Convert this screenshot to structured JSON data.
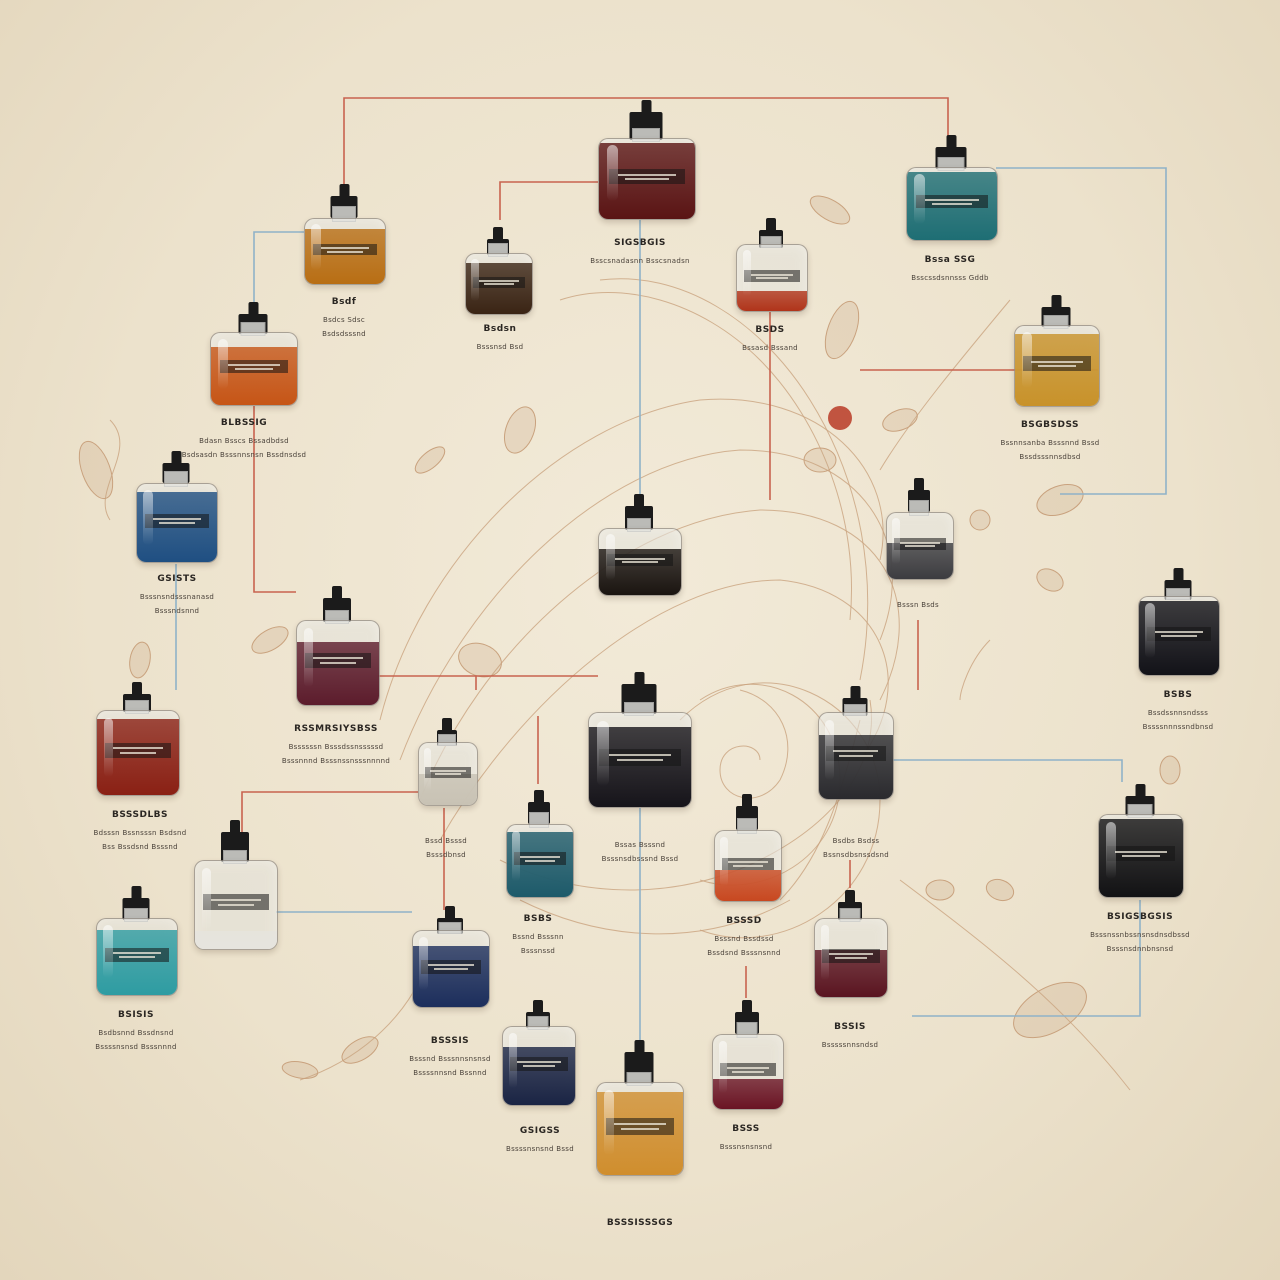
{
  "colors": {
    "background": "#eee5d1",
    "wire_red": "#c8634f",
    "wire_blue": "#8fb2c8",
    "swirl": "#c9a27e"
  },
  "bottles": [
    {
      "name": "bottle-top-center",
      "liquid": "#5a1414",
      "fill": 0.95,
      "caption": {
        "t": "SIGSBGIS",
        "s": "Bsscsnadasnn Bsscsnadsn"
      }
    },
    {
      "name": "bottle-top-right-teal",
      "liquid": "#1e6e74",
      "fill": 0.95,
      "caption": {
        "t": "Bssa SSG",
        "s": "Bsscssdsnnsss Gddb"
      }
    },
    {
      "name": "bottle-amber-left",
      "liquid": "#b86e14",
      "fill": 0.85,
      "caption": {
        "t": "Bsdf",
        "s": "Bsdcs Sdsc",
        "s2": "Bsdsdsssnd"
      }
    },
    {
      "name": "bottle-small-dark",
      "liquid": "#3a2414",
      "fill": 0.85,
      "caption": {
        "t": "Bsdsn",
        "s": "Bsssnsd Bsd"
      }
    },
    {
      "name": "bottle-red-center",
      "liquid": "#b0341a",
      "fill": 0.3,
      "caption": {
        "t": "BSDS",
        "s": "Bssasd Bssand"
      }
    },
    {
      "name": "bottle-orange-left",
      "liquid": "#c65516",
      "fill": 0.8,
      "caption": {
        "t": "BLBSSIG",
        "s": "Bdasn Bsscs Bssadbdsd",
        "s2": "Bsdsasdn Bsssnnsnsn Bssdnsdsd"
      }
    },
    {
      "name": "bottle-amber-right",
      "liquid": "#c8922a",
      "fill": 0.9,
      "caption": {
        "t": "BSGBSDSS",
        "s": "Bssnnsanba Bsssnnd Bssd",
        "s2": "Bssdsssnnsdbsd"
      }
    },
    {
      "name": "bottle-blue-left",
      "liquid": "#1f4f82",
      "fill": 0.9,
      "caption": {
        "t": "GSISTS",
        "s": "Bsssnsndsssnanasd",
        "s2": "Bsssndsnnd"
      }
    },
    {
      "name": "bottle-black-center",
      "liquid": "#1a1410",
      "fill": 0.7,
      "caption": {
        "t": "",
        "s": ""
      }
    },
    {
      "name": "bottle-smoky-right",
      "liquid": "#3c3c40",
      "fill": 0.55,
      "caption": {
        "t": "",
        "s": "Bsssn Bsds"
      }
    },
    {
      "name": "bottle-black-right",
      "liquid": "#121218",
      "fill": 0.95,
      "caption": {
        "t": "BSBS",
        "s": "Bssdssnnsndsss",
        "s2": "Bssssnnnssndbnsd"
      }
    },
    {
      "name": "bottle-burgundy-left",
      "liquid": "#5c1c2c",
      "fill": 0.75,
      "caption": {
        "t": "RSSMRSIYSBSS",
        "s": "Bssssssn Bsssdssnsssssd",
        "s2": "Bsssnnnd Bsssnssnsssnnnnd"
      }
    },
    {
      "name": "bottle-red-black-left",
      "liquid": "#8a2014",
      "fill": 0.9,
      "caption": {
        "t": "BSSSDLBS",
        "s": "Bdsssn Bssnsssn Bsdsnd",
        "s2": "Bss Bssdsnd Bsssnd"
      }
    },
    {
      "name": "bottle-smoke-center-left",
      "liquid": "#c8c2b4",
      "fill": 0.5,
      "caption": {
        "t": "",
        "s": "Bssd Bsssd",
        "s2": "Bsssdbnsd"
      }
    },
    {
      "name": "bottle-black-big-center",
      "liquid": "#16141a",
      "fill": 0.85,
      "caption": {
        "t": "",
        "s": "Bssas Bsssnd",
        "s2": "Bsssnsdbsssnd Bssd"
      }
    },
    {
      "name": "bottle-grey-right",
      "liquid": "#2a2a2e",
      "fill": 0.75,
      "caption": {
        "t": "",
        "s": "Bsdbs Bsdss",
        "s2": "Bssnsdbsnssdsnd"
      }
    },
    {
      "name": "bottle-black-far-right",
      "liquid": "#121214",
      "fill": 0.95,
      "caption": {
        "t": "BSIGSBGSIS",
        "s": "Bsssnssnbssnsnsdnsdbssd",
        "s2": "Bsssnsdnnbnsnsd"
      }
    },
    {
      "name": "bottle-clear-left",
      "liquid": "#e6e4de",
      "fill": 0.2,
      "caption": {
        "t": "",
        "s": ""
      }
    },
    {
      "name": "bottle-teal-small",
      "liquid": "#1d5a6a",
      "fill": 0.9,
      "caption": {
        "t": "BSBS",
        "s": "Bssnd Bsssnn",
        "s2": "Bsssnssd"
      }
    },
    {
      "name": "bottle-amber-red-center",
      "liquid": "#c84820",
      "fill": 0.45,
      "caption": {
        "t": "BSSSD",
        "s": "Bsssnd Bssdssd",
        "s2": "Bssdsnd Bsssnsnnd"
      }
    },
    {
      "name": "bottle-teal-bottom-left",
      "liquid": "#2e9ca2",
      "fill": 0.85,
      "caption": {
        "t": "BSISIS",
        "s": "Bsdbsnnd Bssdnsnd",
        "s2": "Bssssnsnsd Bsssnnnd"
      }
    },
    {
      "name": "bottle-navy-center-left",
      "liquid": "#1c2e5c",
      "fill": 0.8,
      "caption": {
        "t": "BSSSIS",
        "s": "Bsssnd Bsssnnsnsnsd",
        "s2": "Bssssnnsnd Bssnnd"
      }
    },
    {
      "name": "bottle-burgundy-right",
      "liquid": "#5a1420",
      "fill": 0.6,
      "caption": {
        "t": "BSSIS",
        "s": "Bsssssnnsndsd"
      }
    },
    {
      "name": "bottle-navy-bottom",
      "liquid": "#1a2444",
      "fill": 0.75,
      "caption": {
        "t": "GSIGSS",
        "s": "Bssssnsnsnd Bssd"
      }
    },
    {
      "name": "bottle-clear-bottom-right",
      "liquid": "#6a1424",
      "fill": 0.4,
      "caption": {
        "t": "BSSS",
        "s": "Bsssnsnsnsnd"
      }
    },
    {
      "name": "bottle-amber-bottom",
      "liquid": "#d08e2e",
      "fill": 0.9,
      "caption": {
        "t": "BSSSISSSGS",
        "s": ""
      }
    }
  ]
}
